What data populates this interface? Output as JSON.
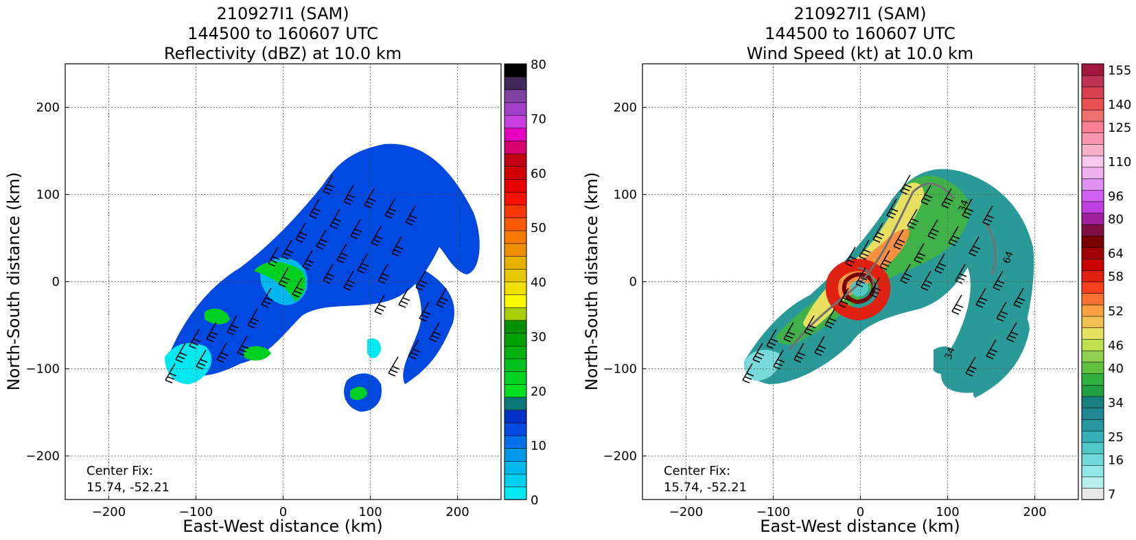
{
  "panels": [
    {
      "title_lines": [
        "210927I1 (SAM)",
        "144500 to 160607 UTC",
        "Reflectivity (dBZ) at 10.0 km"
      ],
      "center_fix_label": "Center Fix:",
      "center_fix_value": "15.74, -52.21",
      "colorbar": {
        "ticks": [
          "0",
          "10",
          "20",
          "30",
          "40",
          "50",
          "60",
          "70",
          "80"
        ],
        "colors": [
          "#00e8f0",
          "#00d0ee",
          "#00b8ec",
          "#0098ea",
          "#0070e8",
          "#0048e0",
          "#0030c8",
          "#0a7878",
          "#00e020",
          "#00d020",
          "#00c020",
          "#00b010",
          "#00a000",
          "#009000",
          "#a8d000",
          "#f8f800",
          "#f0e000",
          "#e8c800",
          "#e8b000",
          "#f09000",
          "#f87800",
          "#f85800",
          "#f83800",
          "#f81000",
          "#e80000",
          "#d00000",
          "#c00010",
          "#d80070",
          "#e800c0",
          "#c840e0",
          "#a040c8",
          "#8040a0",
          "#402858",
          "#000000"
        ]
      },
      "echoes": {
        "main_band_color": "#0048e0",
        "inner_color": "#00b8ec",
        "edge_color": "#00e8f0",
        "convective_color": "#00d020"
      }
    },
    {
      "title_lines": [
        "210927I1 (SAM)",
        "144500 to 160607 UTC",
        "Wind Speed (kt) at 10.0 km"
      ],
      "center_fix_label": "Center Fix:",
      "center_fix_value": "15.74, -52.21",
      "colorbar": {
        "ticks": [
          "7",
          "16",
          "25",
          "34",
          "40",
          "46",
          "52",
          "58",
          "64",
          "80",
          "96",
          "110",
          "125",
          "140",
          "155"
        ],
        "colors": [
          "#e8e8e8",
          "#b8f0f0",
          "#90e8e8",
          "#70d8d8",
          "#50c8c8",
          "#38b0b8",
          "#2898a0",
          "#208890",
          "#188080",
          "#20a040",
          "#30b040",
          "#60c040",
          "#90d050",
          "#c0e050",
          "#e8e060",
          "#f0c050",
          "#f8a040",
          "#f87030",
          "#f84020",
          "#e02010",
          "#c80000",
          "#a00000",
          "#780000",
          "#801040",
          "#a020a0",
          "#c040e0",
          "#d060f0",
          "#e090f0",
          "#f0b0f0",
          "#f8c8f0",
          "#f8b0c8",
          "#f898b0",
          "#f88090",
          "#f07070",
          "#e85050",
          "#d84050",
          "#c03050",
          "#a01840"
        ]
      },
      "contours": [
        "34",
        "34",
        "64"
      ]
    }
  ],
  "shared_axes": {
    "xlabel": "East-West distance (km)",
    "ylabel": "North-South distance (km)",
    "tick_labels": [
      "−200",
      "−100",
      "0",
      "100",
      "200"
    ]
  },
  "chart_data": [
    {
      "type": "heatmap",
      "title": "210927I1 (SAM) 144500 to 160607 UTC Reflectivity (dBZ) at 10.0 km",
      "xlabel": "East-West distance (km)",
      "ylabel": "North-South distance (km)",
      "xlim": [
        -250,
        250
      ],
      "ylim": [
        -250,
        250
      ],
      "xticks": [
        -200,
        -100,
        0,
        100,
        200
      ],
      "yticks": [
        -200,
        -100,
        0,
        100,
        200
      ],
      "colorbar_label_values": [
        0,
        10,
        20,
        30,
        40,
        50,
        60,
        70,
        80
      ],
      "grid": true,
      "annotation": "Center Fix: 15.74, -52.21"
    },
    {
      "type": "heatmap",
      "title": "210927I1 (SAM) 144500 to 160607 UTC Wind Speed (kt) at 10.0 km",
      "xlabel": "East-West distance (km)",
      "ylabel": "North-South distance (km)",
      "xlim": [
        -250,
        250
      ],
      "ylim": [
        -250,
        250
      ],
      "xticks": [
        -200,
        -100,
        0,
        100,
        200
      ],
      "yticks": [
        -200,
        -100,
        0,
        100,
        200
      ],
      "colorbar_label_values": [
        7,
        16,
        25,
        34,
        40,
        46,
        52,
        58,
        64,
        80,
        96,
        110,
        125,
        140,
        155
      ],
      "contour_labels": [
        34,
        34,
        64
      ],
      "grid": true,
      "annotation": "Center Fix: 15.74, -52.21"
    }
  ]
}
